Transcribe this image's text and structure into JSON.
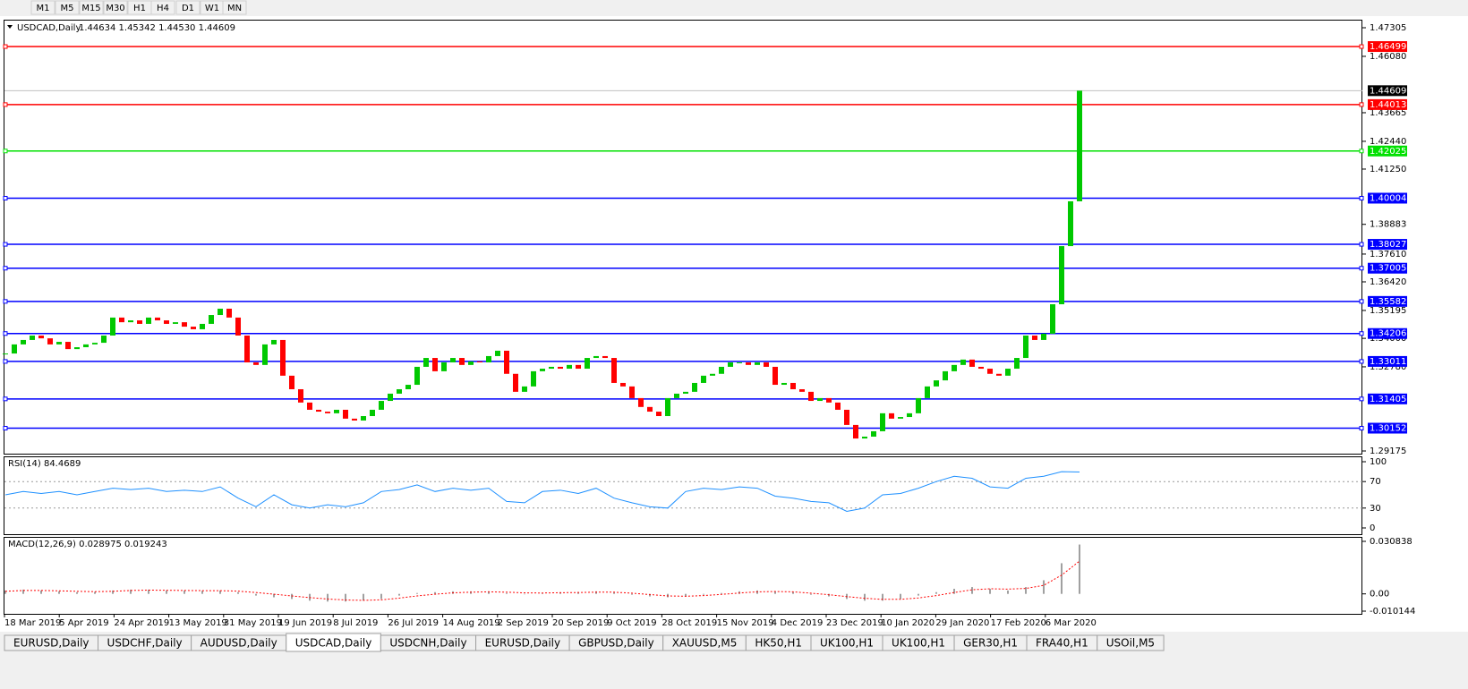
{
  "toolbar": {
    "timeframes": [
      "M1",
      "M5",
      "M15",
      "M30",
      "H1",
      "H4",
      "D1",
      "W1",
      "MN"
    ]
  },
  "chart_data": [
    {
      "type": "candlestick",
      "title": "USDCAD,Daily",
      "quote": "1.44634 1.45342 1.44530 1.44609",
      "up_color": "#00c800",
      "down_color": "#ff0000",
      "ylim": [
        1.29175,
        1.47305
      ],
      "yticks": [
        1.47305,
        {
          "value": 1.4608,
          "label": "1.46080"
        },
        1.43665,
        {
          "value": 1.4244,
          "label": "1.42440"
        },
        {
          "value": 1.4125,
          "label": "1.41250"
        },
        1.38883,
        {
          "value": 1.3761,
          "label": "1.37610"
        },
        {
          "value": 1.3642,
          "label": "1.36420"
        },
        1.35195,
        {
          "value": 1.34,
          "label": "1.34000"
        },
        {
          "value": 1.3278,
          "label": "1.32780"
        },
        1.29175
      ],
      "levels": [
        {
          "value": 1.46499,
          "color": "#ff0000"
        },
        {
          "value": 1.44013,
          "color": "#ff0000"
        },
        {
          "value": 1.42025,
          "color": "#00e000"
        },
        {
          "value": 1.40004,
          "color": "#0000ff"
        },
        {
          "value": 1.38027,
          "color": "#0000ff"
        },
        {
          "value": 1.37005,
          "color": "#0000ff"
        },
        {
          "value": 1.35582,
          "color": "#0000ff"
        },
        {
          "value": 1.34206,
          "color": "#0000ff"
        },
        {
          "value": 1.33011,
          "color": "#0000ff"
        },
        {
          "value": 1.31405,
          "color": "#0000ff"
        },
        {
          "value": 1.30152,
          "color": "#0000ff"
        }
      ],
      "last_price": 1.44609,
      "dates": [
        "18 Mar 2019",
        "5 Apr 2019",
        "24 Apr 2019",
        "13 May 2019",
        "31 May 2019",
        "19 Jun 2019",
        "8 Jul 2019",
        "26 Jul 2019",
        "14 Aug 2019",
        "2 Sep 2019",
        "20 Sep 2019",
        "9 Oct 2019",
        "28 Oct 2019",
        "15 Nov 2019",
        "4 Dec 2019",
        "23 Dec 2019",
        "10 Jan 2020",
        "29 Jan 2020",
        "17 Feb 2020",
        "6 Mar 2020"
      ],
      "closes": [
        1.3335,
        1.3374,
        1.3393,
        1.3412,
        1.34,
        1.3374,
        1.3385,
        1.3354,
        1.3362,
        1.3374,
        1.3381,
        1.3412,
        1.3489,
        1.3469,
        1.3477,
        1.3462,
        1.3489,
        1.3477,
        1.3462,
        1.3469,
        1.345,
        1.3439,
        1.3462,
        1.35,
        1.3527,
        1.3489,
        1.3412,
        1.3297,
        1.3286,
        1.3374,
        1.3393,
        1.324,
        1.3182,
        1.3125,
        1.3094,
        1.3086,
        1.3079,
        1.3094,
        1.3056,
        1.3048,
        1.3067,
        1.3094,
        1.3132,
        1.3163,
        1.3182,
        1.3201,
        1.3278,
        1.3316,
        1.3259,
        1.3297,
        1.3316,
        1.3286,
        1.3301,
        1.3297,
        1.3324,
        1.3347,
        1.3248,
        1.3171,
        1.3194,
        1.3259,
        1.327,
        1.3278,
        1.327,
        1.3286,
        1.327,
        1.3316,
        1.3324,
        1.3316,
        1.3209,
        1.3194,
        1.3144,
        1.3106,
        1.3086,
        1.3067,
        1.3144,
        1.3163,
        1.3171,
        1.3209,
        1.324,
        1.3248,
        1.3278,
        1.3297,
        1.3297,
        1.3286,
        1.3297,
        1.3278,
        1.3201,
        1.3209,
        1.3182,
        1.3171,
        1.3132,
        1.3144,
        1.3125,
        1.3094,
        1.3029,
        1.2971,
        1.2979,
        1.3002,
        1.3079,
        1.3056,
        1.3063,
        1.3079,
        1.3144,
        1.3194,
        1.322,
        1.3259,
        1.3286,
        1.3309,
        1.3278,
        1.327,
        1.3248,
        1.324,
        1.327,
        1.3316,
        1.3412,
        1.3393,
        1.342,
        1.3546,
        1.3795,
        1.3987,
        1.44609
      ]
    },
    {
      "type": "line",
      "title": "RSI(14) 84.4689",
      "color": "#1e90ff",
      "ylim": [
        0,
        100
      ],
      "yticks": [
        0,
        30,
        70,
        100
      ],
      "values": [
        50,
        55,
        52,
        55,
        50,
        55,
        60,
        58,
        60,
        55,
        57,
        55,
        62,
        45,
        32,
        50,
        35,
        30,
        35,
        32,
        38,
        55,
        58,
        65,
        55,
        60,
        57,
        60,
        40,
        38,
        55,
        57,
        52,
        60,
        45,
        38,
        32,
        30,
        55,
        60,
        58,
        62,
        60,
        48,
        45,
        40,
        38,
        25,
        30,
        50,
        52,
        60,
        70,
        78,
        75,
        62,
        60,
        75,
        78,
        85,
        84.4689
      ]
    },
    {
      "type": "macd",
      "title": "MACD(12,26,9) 0.028975 0.019243",
      "ylim": [
        -0.010144,
        0.030838
      ],
      "yticks": [
        -0.010144,
        {
          "value": 0,
          "label": "0.00"
        },
        0.030838
      ],
      "series": [
        {
          "color": "#a0a0a0",
          "values": [
            0.002,
            0.0025,
            0.002,
            0.0015,
            0.001,
            0.0012,
            0.002,
            0.0025,
            0.0025,
            0.002,
            0.002,
            0.0018,
            0.002,
            0.001,
            -0.001,
            -0.002,
            -0.003,
            -0.004,
            -0.0045,
            -0.0045,
            -0.004,
            -0.003,
            -0.001,
            0.0005,
            0.001,
            0.0015,
            0.0015,
            0.0015,
            0.0005,
            0.0,
            0.0005,
            0.001,
            0.001,
            0.0015,
            0.0008,
            -0.0005,
            -0.0015,
            -0.002,
            -0.0015,
            -0.0005,
            0.0005,
            0.0015,
            0.002,
            0.0015,
            0.001,
            -0.0005,
            -0.0015,
            -0.003,
            -0.004,
            -0.004,
            -0.003,
            -0.001,
            0.001,
            0.003,
            0.004,
            0.003,
            0.002,
            0.004,
            0.008,
            0.018,
            0.028975
          ]
        },
        {
          "color": "#ff0000",
          "values": [
            0.0015,
            0.002,
            0.002,
            0.0018,
            0.0015,
            0.0013,
            0.0015,
            0.002,
            0.0022,
            0.0021,
            0.002,
            0.0019,
            0.0019,
            0.0016,
            0.0008,
            -0.0002,
            -0.0012,
            -0.0022,
            -0.003,
            -0.0036,
            -0.0038,
            -0.0035,
            -0.0025,
            -0.0012,
            -0.0002,
            0.0006,
            0.001,
            0.0012,
            0.001,
            0.0006,
            0.0005,
            0.0007,
            0.0008,
            0.001,
            0.001,
            0.0004,
            -0.0004,
            -0.0012,
            -0.0014,
            -0.001,
            -0.0003,
            0.0005,
            0.0012,
            0.0014,
            0.0012,
            0.0004,
            -0.0005,
            -0.0016,
            -0.0026,
            -0.0032,
            -0.0032,
            -0.0024,
            -0.001,
            0.0008,
            0.0024,
            0.003,
            0.0028,
            0.0032,
            0.005,
            0.011,
            0.019243
          ]
        }
      ]
    }
  ],
  "tabs": {
    "active": 3,
    "items": [
      "EURUSD,Daily",
      "USDCHF,Daily",
      "AUDUSD,Daily",
      "USDCAD,Daily",
      "USDCNH,Daily",
      "EURUSD,Daily",
      "GBPUSD,Daily",
      "XAUUSD,M5",
      "HK50,H1",
      "UK100,H1",
      "UK100,H1",
      "GER30,H1",
      "FRA40,H1",
      "USOil,M5"
    ]
  }
}
